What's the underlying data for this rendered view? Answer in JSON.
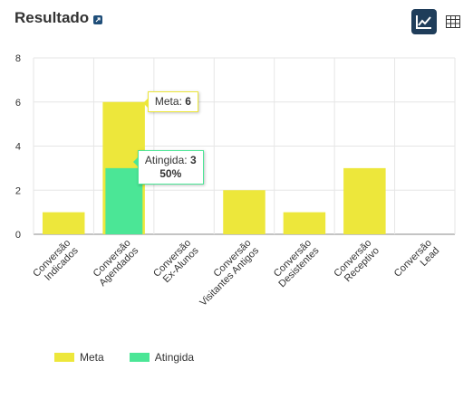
{
  "header": {
    "title": "Resultado"
  },
  "toolbar": {
    "chart_view_icon": "line-chart-icon",
    "table_view_icon": "table-icon"
  },
  "colors": {
    "meta": "#ede73b",
    "atingida": "#4be696",
    "active_button": "#1f3d5a"
  },
  "legend": {
    "items": [
      {
        "label": "Meta",
        "color": "#ede73b"
      },
      {
        "label": "Atingida",
        "color": "#4be696"
      }
    ]
  },
  "tooltips": {
    "meta": {
      "label": "Meta:",
      "value": "6"
    },
    "atingida": {
      "label": "Atingida:",
      "value": "3",
      "percent": "50%"
    }
  },
  "chart_data": {
    "type": "bar",
    "categories": [
      [
        "Conversão",
        "Indicados"
      ],
      [
        "Conversão",
        "Agendados"
      ],
      [
        "Conversão",
        "Ex-Alunos"
      ],
      [
        "Conversão",
        "Visitantes Antigos"
      ],
      [
        "Conversão",
        "Desistentes"
      ],
      [
        "Conversão",
        "Receptivo"
      ],
      [
        "Conversão",
        "Lead"
      ]
    ],
    "series": [
      {
        "name": "Meta",
        "values": [
          1,
          6,
          0,
          2,
          1,
          3,
          0
        ]
      },
      {
        "name": "Atingida",
        "values": [
          0,
          3,
          0,
          0,
          0,
          0,
          0
        ]
      }
    ],
    "ylim": [
      0,
      8
    ],
    "yticks": [
      0,
      2,
      4,
      6,
      8
    ],
    "grid": true,
    "legend_position": "bottom-left"
  }
}
